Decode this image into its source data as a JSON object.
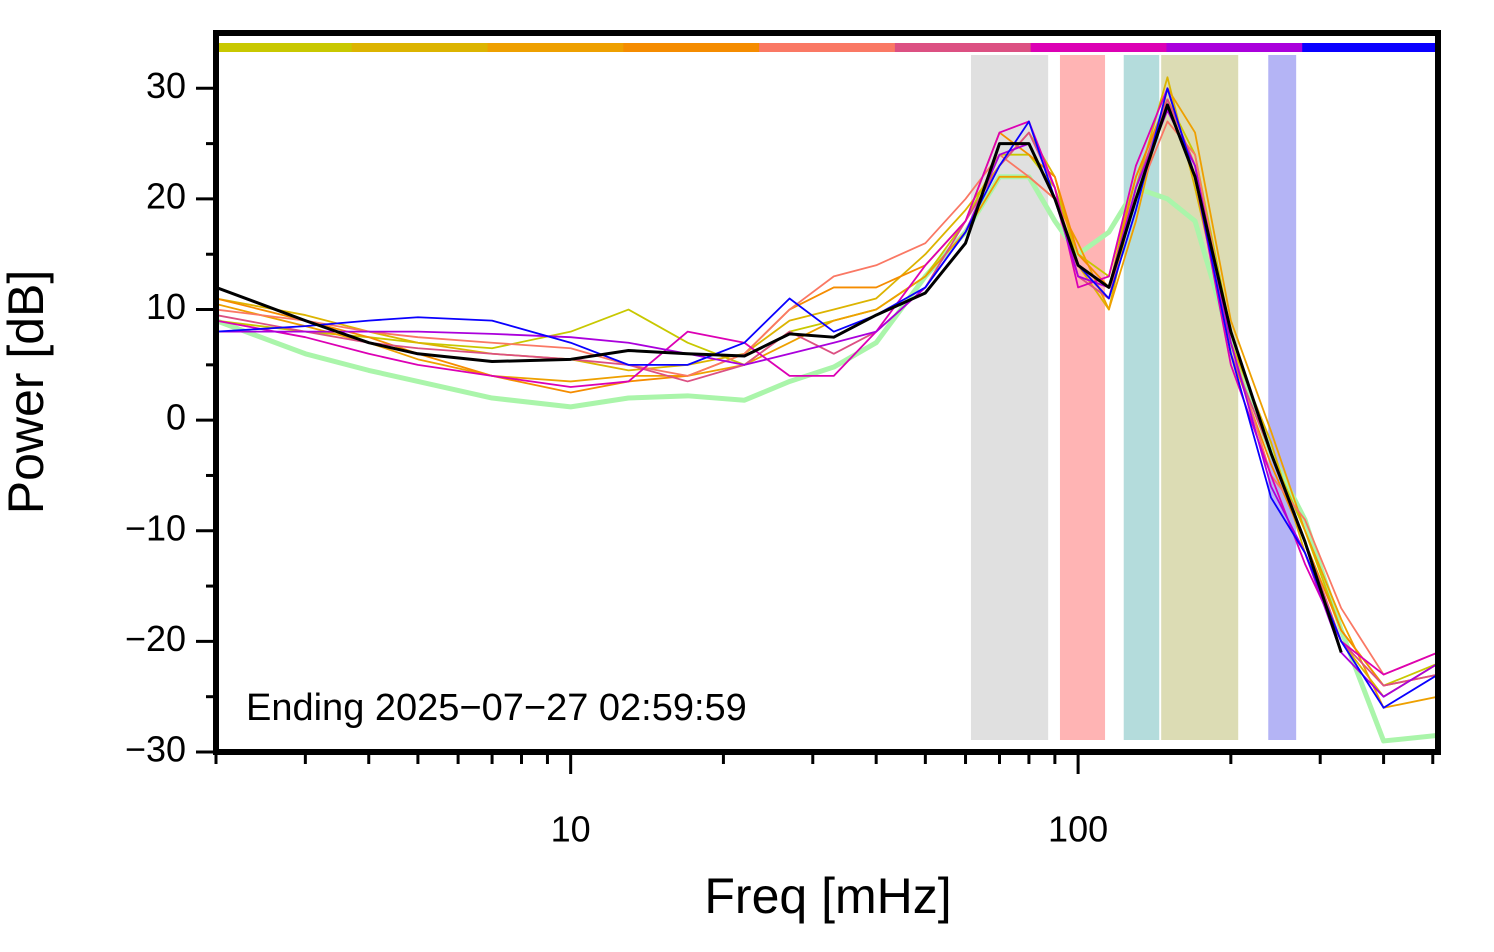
{
  "chart_data": {
    "type": "line",
    "ylabel": "Power [dB]",
    "xlabel": "Freq [mHz]",
    "annotation": "Ending 2025−07−27 02:59:59",
    "xscale": "log",
    "xlim": [
      2,
      512
    ],
    "ylim": [
      -30,
      35
    ],
    "xticks": [
      10,
      100
    ],
    "xminorticks": [
      2,
      3,
      4,
      5,
      6,
      7,
      8,
      9,
      20,
      30,
      40,
      50,
      60,
      70,
      80,
      90,
      200,
      300,
      400,
      500
    ],
    "yticks": [
      {
        "value": -30,
        "label": "−30"
      },
      {
        "value": -20,
        "label": "−20"
      },
      {
        "value": -10,
        "label": "−10"
      },
      0,
      10,
      20,
      30
    ],
    "yminorticks": [
      -25,
      -15,
      -5,
      5,
      15,
      25
    ],
    "colorbar": [
      "#c8c800",
      "#dcb400",
      "#eea000",
      "#f58c00",
      "#fa7864",
      "#dc5082",
      "#dc00b4",
      "#aa00dc",
      "#0a00ff"
    ],
    "bands": [
      {
        "range": [
          61.5,
          87.3
        ],
        "color": "#e0e0e0"
      },
      {
        "range": [
          92.1,
          113
        ],
        "color": "#ffb4b4"
      },
      {
        "range": [
          123,
          144.5
        ],
        "color": "#b4dcdc"
      },
      {
        "range": [
          145.8,
          206.8
        ],
        "color": "#dcdcb4"
      },
      {
        "range": [
          237,
          269
        ],
        "color": "#b4b4f5"
      }
    ],
    "x": [
      2,
      3,
      4,
      5,
      7,
      10,
      13,
      17,
      22,
      27,
      33,
      40,
      50,
      60,
      70,
      80,
      90,
      100,
      115,
      130,
      150,
      170,
      200,
      240,
      280,
      330,
      400,
      512
    ],
    "reference": {
      "color": "#aaf5aa",
      "values": [
        9,
        6,
        4.5,
        3.5,
        2,
        1.2,
        2,
        2.2,
        1.8,
        3.5,
        4.8,
        7,
        13,
        17,
        22,
        22,
        18,
        15,
        17,
        21,
        20,
        18,
        7,
        -3,
        -9,
        -19,
        -29,
        -28.5
      ]
    },
    "series": [
      {
        "color": "#c8c800",
        "values": [
          9,
          8,
          7.5,
          7,
          6.5,
          8,
          10,
          7,
          5,
          8,
          9,
          10,
          13,
          18,
          24,
          24,
          21,
          15,
          13,
          22,
          29,
          24,
          8,
          -3,
          -10,
          -19,
          -24,
          -22
        ]
      },
      {
        "color": "#dcb400",
        "values": [
          11,
          9.5,
          8,
          7,
          6,
          5.5,
          4.5,
          5,
          6,
          9,
          10,
          11,
          15,
          19,
          23,
          26,
          22,
          14,
          10,
          21,
          31,
          21,
          7,
          -2,
          -12,
          -20,
          -25,
          -22
        ]
      },
      {
        "color": "#eea000",
        "values": [
          10.5,
          8.5,
          7,
          5.5,
          4,
          3.5,
          4,
          4,
          5,
          7,
          9,
          10,
          13,
          17,
          22,
          22,
          20,
          16,
          10,
          18,
          30,
          26,
          9,
          -1,
          -10,
          -18,
          -26,
          -25
        ]
      },
      {
        "color": "#f58c00",
        "values": [
          11,
          9,
          7.5,
          6,
          4,
          2.5,
          3.5,
          4,
          6,
          10,
          12,
          12,
          14,
          18,
          26,
          24,
          22,
          15,
          12,
          22,
          29,
          23,
          6,
          -4,
          -11,
          -19,
          -24,
          -23
        ]
      },
      {
        "color": "#fa7864",
        "values": [
          10,
          9,
          8,
          7.5,
          7,
          6.5,
          5,
          4,
          6,
          10,
          13,
          14,
          16,
          20,
          24,
          22,
          20,
          13,
          12,
          20,
          27,
          24,
          7,
          -5,
          -9,
          -17,
          -23,
          -21
        ]
      },
      {
        "color": "#dc5082",
        "values": [
          9.5,
          8,
          7,
          6.5,
          6,
          5.5,
          5,
          3.5,
          5,
          8,
          6,
          8,
          12,
          18,
          23,
          26,
          21,
          13,
          11,
          21,
          29,
          23,
          6,
          -3,
          -11,
          -20,
          -24,
          -23
        ]
      },
      {
        "color": "#dc00b4",
        "values": [
          9,
          7.5,
          6,
          5,
          4,
          3,
          3.5,
          8,
          7,
          4,
          4,
          8,
          14,
          18,
          26,
          27,
          21,
          12,
          13,
          23,
          30,
          22,
          5,
          -5,
          -13,
          -20,
          -23,
          -21
        ]
      },
      {
        "color": "#aa00dc",
        "values": [
          8,
          8,
          8,
          8,
          7.8,
          7.5,
          7,
          6,
          5,
          6,
          7,
          8,
          12,
          17,
          24,
          25,
          20,
          13,
          12,
          21,
          28,
          23,
          7,
          -6,
          -12,
          -21,
          -25,
          -22
        ]
      },
      {
        "color": "#0a00ff",
        "values": [
          8,
          8.5,
          9,
          9.3,
          9,
          7,
          5,
          5,
          7,
          11,
          8,
          9.5,
          12,
          17,
          23,
          27,
          20,
          14,
          11,
          19,
          30,
          22,
          6,
          -7,
          -12,
          -20,
          -26,
          -23
        ]
      }
    ],
    "mean": {
      "color": "#000000",
      "values": [
        12,
        9,
        7,
        6,
        5.3,
        5.5,
        6.3,
        6,
        5.8,
        7.8,
        7.5,
        9.5,
        11.5,
        16,
        25,
        25,
        20,
        14,
        12,
        20,
        28.5,
        22,
        8,
        -3,
        -11,
        -21,
        null,
        null
      ]
    }
  }
}
